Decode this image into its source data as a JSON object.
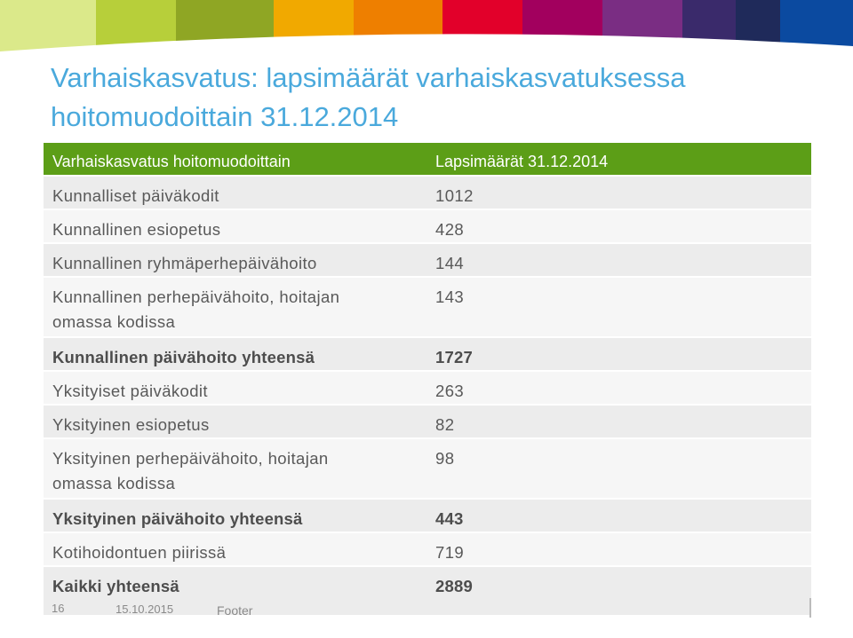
{
  "banner": {
    "colors": [
      "#dbe98a",
      "#b7cf3a",
      "#8fa624",
      "#f1a900",
      "#ee7f00",
      "#e2002a",
      "#a2005e",
      "#7a2d83",
      "#3a2a6b",
      "#1f2a5a",
      "#0b4aa0"
    ]
  },
  "title": {
    "line1": "Varhaiskasvatus: lapsimäärät varhaiskasvatuksessa",
    "line2": "hoitomuodoittain 31.12.2014"
  },
  "table": {
    "header": {
      "col1": "Varhaiskasvatus hoitomuodoittain",
      "col2": "Lapsimäärät 31.12.2014"
    },
    "rows": [
      {
        "label": "Kunnalliset päiväkodit",
        "value": "1012"
      },
      {
        "label": "Kunnallinen esiopetus",
        "value": "428"
      },
      {
        "label": "Kunnallinen ryhmäperhepäivähoito",
        "value": "144"
      },
      {
        "label_line1": "Kunnallinen perhepäivähoito, hoitajan",
        "label_line2": "omassa kodissa",
        "value": "143"
      },
      {
        "label": "Kunnallinen päivähoito yhteensä",
        "value": "1727"
      },
      {
        "label": "Yksityiset päiväkodit",
        "value": "263"
      },
      {
        "label": "Yksityinen esiopetus",
        "value": "82"
      },
      {
        "label_line1": "Yksityinen perhepäivähoito, hoitajan",
        "label_line2": "omassa kodissa",
        "value": "98"
      },
      {
        "label": "Yksityinen päivähoito yhteensä",
        "value": "443"
      },
      {
        "label": "Kotihoidontuen piirissä",
        "value": "719"
      },
      {
        "label": "Kaikki yhteensä",
        "value": "2889"
      }
    ]
  },
  "chart_data": {
    "type": "table",
    "columns": [
      "Varhaiskasvatus hoitomuodoittain",
      "Lapsimäärät 31.12.2014"
    ],
    "rows": [
      [
        "Kunnalliset päiväkodit",
        "1012"
      ],
      [
        "Kunnallinen esiopetus",
        "428"
      ],
      [
        "Kunnallinen ryhmäperhepäivähoito",
        "144"
      ],
      [
        "Kunnallinen perhepäivähoito, hoitajan omassa kodissa",
        "143"
      ],
      [
        "Kunnallinen päivähoito yhteensä",
        "1727"
      ],
      [
        "Yksityiset päiväkodit",
        "263"
      ],
      [
        "Yksityinen esiopetus",
        "82"
      ],
      [
        "Yksityinen perhepäivähoito, hoitajan omassa kodissa",
        "98"
      ],
      [
        "Yksityinen päivähoito yhteensä",
        "443"
      ],
      [
        "Kotihoidontuen piirissä",
        "719"
      ],
      [
        "Kaikki yhteensä",
        "2889"
      ]
    ]
  },
  "footer": {
    "page_number": "16",
    "date": "15.10.2015",
    "text": "Footer"
  }
}
